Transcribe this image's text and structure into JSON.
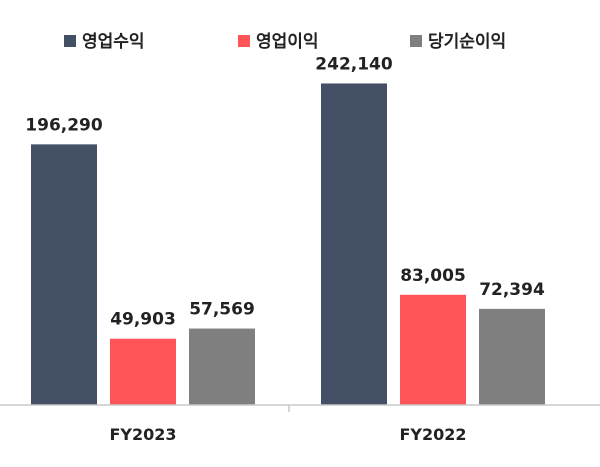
{
  "chart_data": {
    "type": "bar",
    "categories": [
      "FY2023",
      "FY2022"
    ],
    "series": [
      {
        "name": "영업수익",
        "values": [
          196290,
          242140
        ],
        "labels": [
          "196,290",
          "242,140"
        ]
      },
      {
        "name": "영업이익",
        "values": [
          49903,
          83005
        ],
        "labels": [
          "49,903",
          "83,005"
        ]
      },
      {
        "name": "당기순이익",
        "values": [
          57569,
          72394
        ],
        "labels": [
          "57,569",
          "72,394"
        ]
      }
    ],
    "colors": [
      "#435066",
      "#ff5558",
      "#7f7f7f"
    ],
    "legend_position": "top",
    "grid": false,
    "ylim": [
      0,
      305000
    ]
  }
}
